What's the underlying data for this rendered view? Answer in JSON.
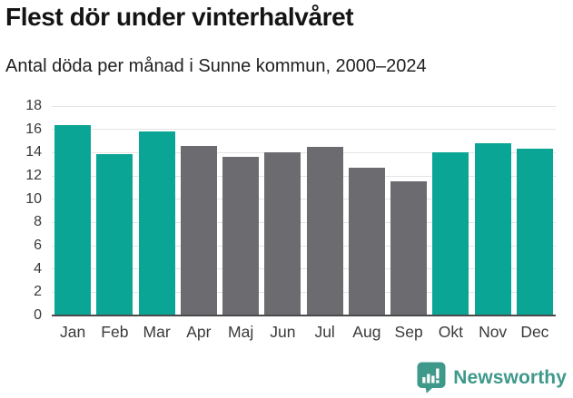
{
  "title": "Flest dör under vinterhalvåret",
  "subtitle": "Antal döda per månad i Sunne kommun, 2000–2024",
  "colors": {
    "accent_teal": "#0aa595",
    "neutral_gray": "#6b6b70",
    "logo_teal": "#3f998b",
    "gridline": "#e4e4e4",
    "axis_line": "#4a4a4a",
    "text_dark": "#141414",
    "tick_text": "#3a3a3a"
  },
  "chart_data": {
    "type": "bar",
    "title": "Flest dör under vinterhalvåret",
    "subtitle": "Antal döda per månad i Sunne kommun, 2000–2024",
    "categories": [
      "Jan",
      "Feb",
      "Mar",
      "Apr",
      "Maj",
      "Jun",
      "Jul",
      "Aug",
      "Sep",
      "Okt",
      "Nov",
      "Dec"
    ],
    "values": [
      16.4,
      13.9,
      15.8,
      14.6,
      13.6,
      14.0,
      14.5,
      12.7,
      11.5,
      14.0,
      14.8,
      14.3
    ],
    "bar_groups": [
      "winter",
      "winter",
      "winter",
      "summer",
      "summer",
      "summer",
      "summer",
      "summer",
      "summer",
      "winter",
      "winter",
      "winter"
    ],
    "group_colors": {
      "winter": "#0aa595",
      "summer": "#6b6b70"
    },
    "xlabel": "",
    "ylabel": "",
    "ylim": [
      0,
      18
    ],
    "yticks": [
      0,
      2,
      4,
      6,
      8,
      10,
      12,
      14,
      16,
      18
    ],
    "grid": true,
    "legend": false
  },
  "footer": {
    "brand": "Newsworthy",
    "logo_icon": "bar-chart-speech-bubble"
  }
}
